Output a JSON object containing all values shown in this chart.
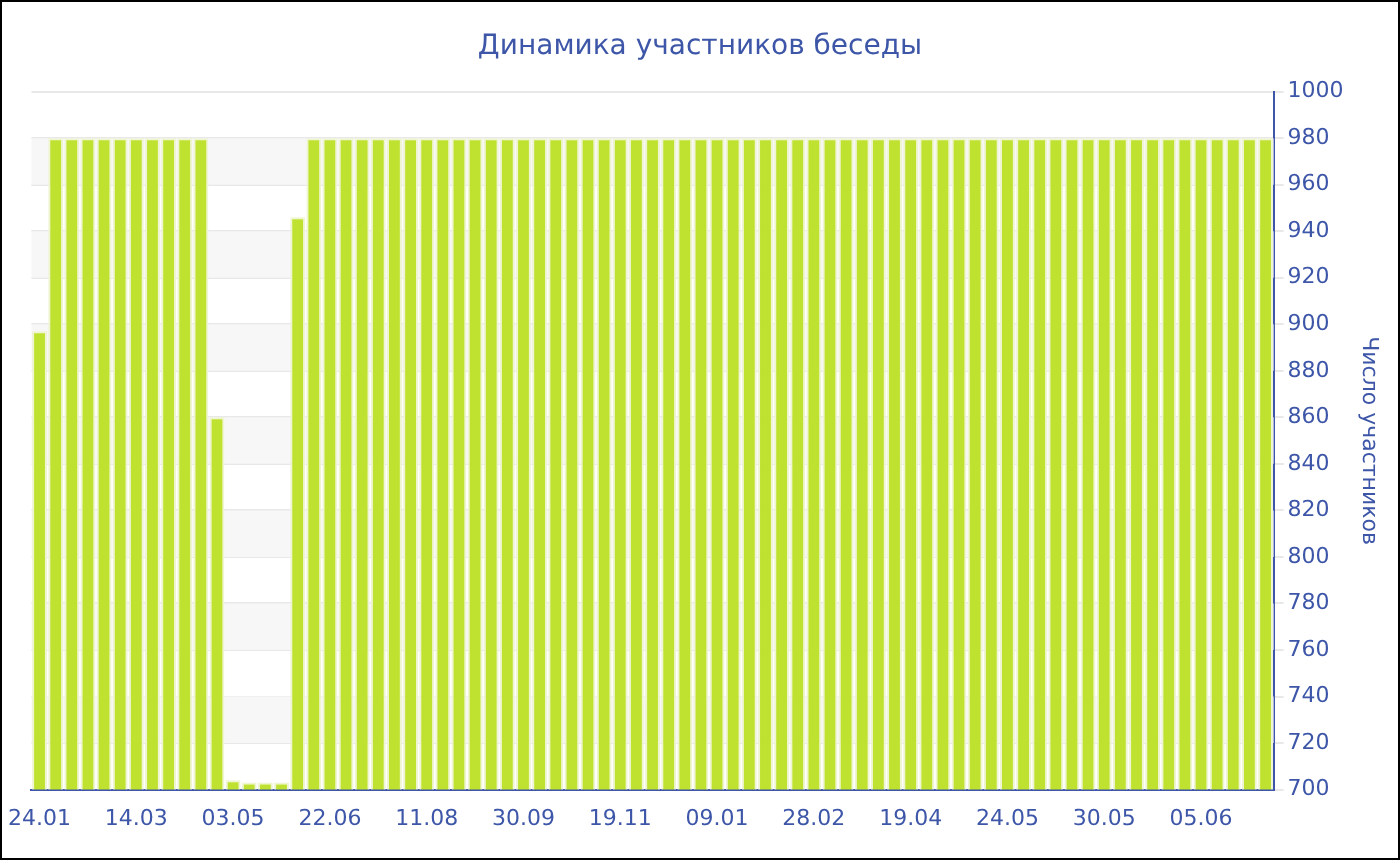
{
  "chart_data": {
    "type": "bar",
    "title": "Динамика участников беседы",
    "ylabel": "Число участников",
    "categories": [
      "24.01",
      null,
      null,
      null,
      null,
      null,
      "14.03",
      null,
      null,
      null,
      null,
      null,
      "03.05",
      null,
      null,
      null,
      null,
      null,
      "22.06",
      null,
      null,
      null,
      null,
      null,
      "11.08",
      null,
      null,
      null,
      null,
      null,
      "30.09",
      null,
      null,
      null,
      null,
      null,
      "19.11",
      null,
      null,
      null,
      null,
      null,
      "09.01",
      null,
      null,
      null,
      null,
      null,
      "28.02",
      null,
      null,
      null,
      null,
      null,
      "19.04",
      null,
      null,
      null,
      null,
      null,
      "24.05",
      null,
      null,
      null,
      null,
      null,
      "30.05",
      null,
      null,
      null,
      null,
      null,
      "05.06",
      null,
      null,
      null,
      null
    ],
    "values": [
      897,
      980,
      980,
      980,
      980,
      980,
      980,
      980,
      980,
      980,
      980,
      860,
      704,
      703,
      703,
      703,
      946,
      980,
      980,
      980,
      980,
      980,
      980,
      980,
      980,
      980,
      980,
      980,
      980,
      980,
      980,
      980,
      980,
      980,
      980,
      980,
      980,
      980,
      980,
      980,
      980,
      980,
      980,
      980,
      980,
      980,
      980,
      980,
      980,
      980,
      980,
      980,
      980,
      980,
      980,
      980,
      980,
      980,
      980,
      980,
      980,
      980,
      980,
      980,
      980,
      980,
      980,
      980,
      980,
      980,
      980,
      980,
      980,
      980,
      980,
      980,
      980
    ],
    "color": "#bfe12f",
    "ylim": [
      700,
      1000
    ],
    "yticks": [
      700,
      720,
      740,
      760,
      780,
      800,
      820,
      840,
      860,
      880,
      900,
      920,
      940,
      960,
      980,
      1000
    ],
    "grid": "y"
  }
}
